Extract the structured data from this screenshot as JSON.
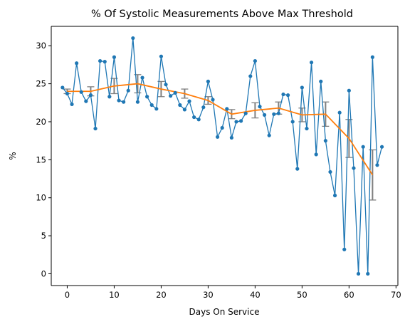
{
  "chart_data": {
    "type": "line",
    "title": "% Of Systolic Measurements Above Max Threshold",
    "xlabel": "Days On Service",
    "ylabel": "%",
    "xlim": [
      -3.4,
      70.4
    ],
    "ylim": [
      -1.55,
      32.55
    ],
    "xticks": [
      0,
      10,
      20,
      30,
      40,
      50,
      60,
      70
    ],
    "yticks": [
      0,
      5,
      10,
      15,
      20,
      25,
      30
    ],
    "grid": false,
    "colors": {
      "daily": "#1f77b4",
      "rolling": "#ff7f0e",
      "errorbar": "#808080"
    },
    "series": [
      {
        "x": [
          -1,
          0,
          1,
          2,
          3,
          4,
          5,
          6,
          7,
          8,
          9,
          10,
          11,
          12,
          13,
          14,
          15,
          16,
          17,
          18,
          19,
          20,
          21,
          22,
          23,
          24,
          25,
          26,
          27,
          28,
          29,
          30,
          31,
          32,
          33,
          34,
          35,
          36,
          37,
          38,
          39,
          40,
          41,
          42,
          43,
          44,
          45,
          46,
          47,
          48,
          49,
          50,
          51,
          52,
          53,
          54,
          55,
          56,
          57,
          58,
          59,
          60,
          61,
          62,
          63,
          64,
          65,
          66,
          67
        ],
        "y": [
          24.5,
          23.7,
          22.3,
          27.7,
          23.9,
          22.7,
          23.5,
          19.1,
          28.0,
          27.9,
          23.3,
          28.5,
          22.8,
          22.6,
          24.1,
          31.0,
          22.6,
          25.8,
          23.3,
          22.2,
          21.7,
          28.6,
          24.9,
          23.4,
          23.8,
          22.2,
          21.6,
          22.7,
          20.6,
          20.3,
          21.9,
          25.3,
          22.9,
          18.0,
          19.2,
          21.7,
          17.9,
          20.0,
          20.1,
          21.1,
          26.0,
          28.0,
          22.0,
          20.9,
          18.2,
          21.0,
          21.1,
          23.6,
          23.5,
          20.0,
          13.8,
          24.5,
          19.1,
          27.8,
          15.7,
          25.3,
          17.5,
          13.4,
          10.3,
          21.2,
          3.2,
          24.1,
          13.9,
          0,
          16.7,
          0,
          28.5,
          14.3,
          16.7
        ]
      },
      {
        "x": [
          0,
          5,
          10,
          15,
          20,
          25,
          30,
          35,
          40,
          45,
          50,
          55,
          60,
          65
        ],
        "y": [
          24.0,
          24.0,
          24.7,
          25.0,
          24.3,
          23.7,
          22.8,
          21.0,
          21.5,
          21.8,
          20.9,
          21.0,
          17.8,
          13.0
        ],
        "err": [
          0.3,
          0.6,
          1.0,
          1.2,
          1.0,
          0.6,
          0.5,
          0.6,
          1.0,
          0.8,
          0.9,
          1.6,
          2.5,
          3.3
        ]
      }
    ]
  }
}
